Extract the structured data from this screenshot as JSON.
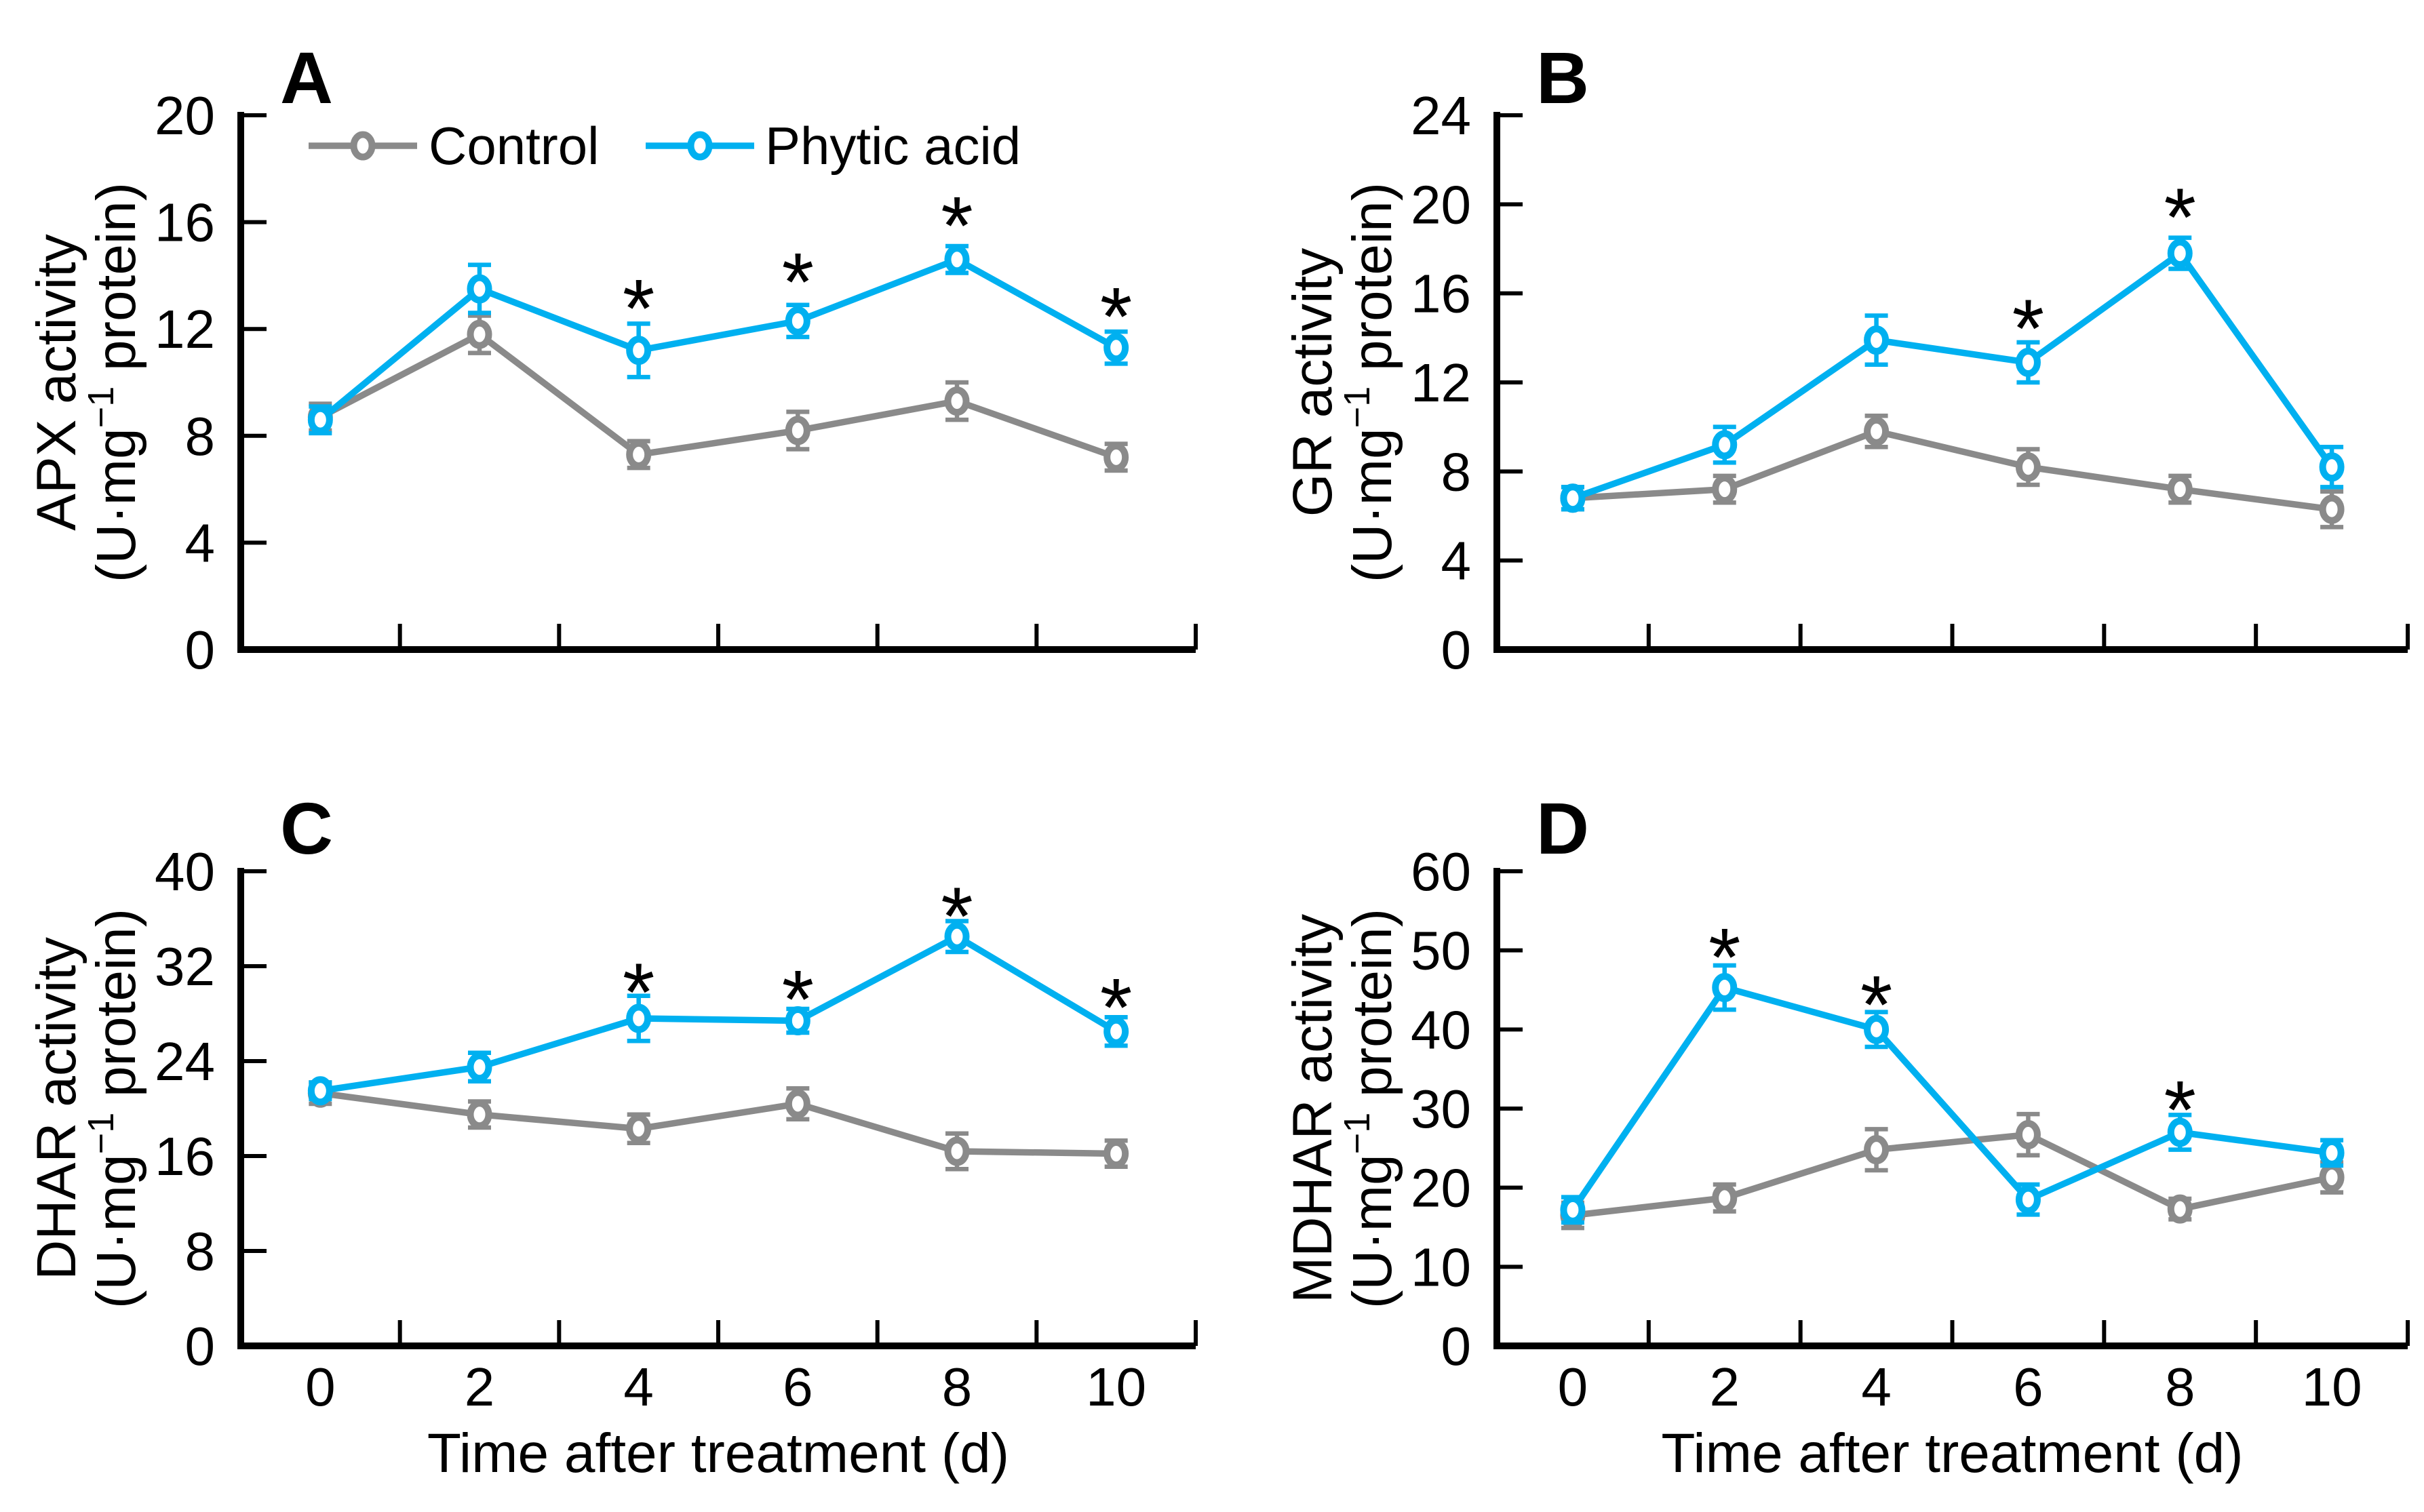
{
  "figure": {
    "background": "#ffffff"
  },
  "legend": {
    "position": "top-inside-panel-A",
    "items": [
      {
        "label": "Control",
        "color": "#8A8A8A"
      },
      {
        "label": "Phytic acid",
        "color": "#00B0F0"
      }
    ]
  },
  "significance_symbol": "*",
  "xlabel": "Time after treatment (d)",
  "chart_data": [
    {
      "type": "line",
      "letter": "A",
      "ylabel_lines": [
        "APX activity",
        "(U·mg⁻¹ protein)"
      ],
      "ylim": [
        0,
        20
      ],
      "yticks": [
        0,
        4,
        8,
        12,
        16,
        20
      ],
      "categories": [
        0,
        2,
        4,
        6,
        8,
        10
      ],
      "xticklabels": [
        "0",
        "2",
        "4",
        "6",
        "8",
        "10"
      ],
      "show_x_tick_labels": false,
      "show_xlabel": false,
      "show_legend": true,
      "grid": false,
      "series": [
        {
          "name": "Control",
          "color": "#8A8A8A",
          "values": [
            8.7,
            11.8,
            7.3,
            8.2,
            9.3,
            7.2
          ],
          "errors": [
            0.5,
            0.7,
            0.5,
            0.7,
            0.7,
            0.5
          ]
        },
        {
          "name": "Phytic acid",
          "color": "#00B0F0",
          "values": [
            8.6,
            13.5,
            11.2,
            12.3,
            14.6,
            11.3
          ],
          "errors": [
            0.5,
            0.9,
            1.0,
            0.6,
            0.5,
            0.6
          ]
        }
      ],
      "asterisks": [
        {
          "x": 4,
          "y": 14.0
        },
        {
          "x": 6,
          "y": 15.0
        },
        {
          "x": 8,
          "y": 17.1
        },
        {
          "x": 10,
          "y": 13.7
        }
      ]
    },
    {
      "type": "line",
      "letter": "B",
      "ylabel_lines": [
        "GR activity",
        "(U·mg⁻¹ protein)"
      ],
      "ylim": [
        0,
        24
      ],
      "yticks": [
        0,
        4,
        8,
        12,
        16,
        20,
        24
      ],
      "categories": [
        0,
        2,
        4,
        6,
        8,
        10
      ],
      "xticklabels": [
        "0",
        "2",
        "4",
        "6",
        "8",
        "10"
      ],
      "show_x_tick_labels": false,
      "show_xlabel": false,
      "show_legend": false,
      "grid": false,
      "series": [
        {
          "name": "Control",
          "color": "#8A8A8A",
          "values": [
            6.8,
            7.2,
            9.8,
            8.2,
            7.2,
            6.3
          ],
          "errors": [
            0.5,
            0.6,
            0.7,
            0.8,
            0.6,
            0.8
          ]
        },
        {
          "name": "Phytic acid",
          "color": "#00B0F0",
          "values": [
            6.8,
            9.2,
            13.9,
            12.9,
            17.8,
            8.2
          ],
          "errors": [
            0.5,
            0.8,
            1.1,
            0.9,
            0.7,
            0.9
          ]
        }
      ],
      "asterisks": [
        {
          "x": 6,
          "y": 15.9
        },
        {
          "x": 8,
          "y": 20.9
        }
      ]
    },
    {
      "type": "line",
      "letter": "C",
      "ylabel_lines": [
        "DHAR activity",
        "(U·mg⁻¹ protein)"
      ],
      "ylim": [
        0,
        40
      ],
      "yticks": [
        0,
        8,
        16,
        24,
        32,
        40
      ],
      "categories": [
        0,
        2,
        4,
        6,
        8,
        10
      ],
      "xticklabels": [
        "0",
        "2",
        "4",
        "6",
        "8",
        "10"
      ],
      "show_x_tick_labels": true,
      "show_xlabel": true,
      "show_legend": false,
      "grid": false,
      "series": [
        {
          "name": "Control",
          "color": "#8A8A8A",
          "values": [
            21.3,
            19.5,
            18.3,
            20.4,
            16.4,
            16.2
          ],
          "errors": [
            0.9,
            1.1,
            1.2,
            1.3,
            1.5,
            1.1
          ]
        },
        {
          "name": "Phytic acid",
          "color": "#00B0F0",
          "values": [
            21.5,
            23.5,
            27.6,
            27.4,
            34.5,
            26.5
          ],
          "errors": [
            0.7,
            1.2,
            1.9,
            1.0,
            1.3,
            1.2
          ]
        }
      ],
      "asterisks": [
        {
          "x": 4,
          "y": 32.6
        },
        {
          "x": 6,
          "y": 32.0
        },
        {
          "x": 8,
          "y": 39.0
        },
        {
          "x": 10,
          "y": 31.3
        }
      ]
    },
    {
      "type": "line",
      "letter": "D",
      "ylabel_lines": [
        "MDHAR activity",
        "(U·mg⁻¹ protein)"
      ],
      "ylim": [
        0,
        60
      ],
      "yticks": [
        0,
        10,
        20,
        30,
        40,
        50,
        60
      ],
      "categories": [
        0,
        2,
        4,
        6,
        8,
        10
      ],
      "xticklabels": [
        "0",
        "2",
        "4",
        "6",
        "8",
        "10"
      ],
      "show_x_tick_labels": true,
      "show_xlabel": true,
      "show_legend": false,
      "grid": false,
      "series": [
        {
          "name": "Control",
          "color": "#8A8A8A",
          "values": [
            16.5,
            18.7,
            24.8,
            26.7,
            17.3,
            21.3
          ],
          "errors": [
            1.6,
            1.7,
            2.6,
            2.6,
            1.3,
            1.9
          ]
        },
        {
          "name": "Phytic acid",
          "color": "#00B0F0",
          "values": [
            17.2,
            45.3,
            40.0,
            18.5,
            27.0,
            24.4
          ],
          "errors": [
            1.6,
            2.8,
            2.2,
            1.9,
            2.2,
            1.6
          ]
        }
      ],
      "asterisks": [
        {
          "x": 2,
          "y": 53.3
        },
        {
          "x": 4,
          "y": 47.3
        },
        {
          "x": 8,
          "y": 34.0
        }
      ]
    }
  ]
}
